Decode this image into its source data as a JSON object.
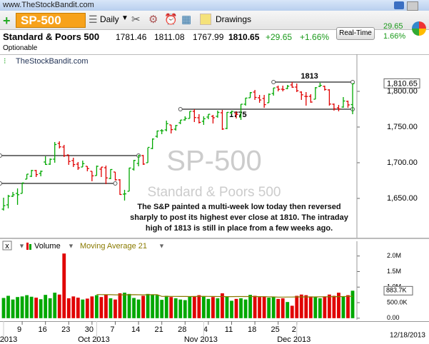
{
  "header": {
    "site": "www.TheStockBandit.com",
    "symbol": "SP-500",
    "period": "Daily",
    "drawings": "Drawings",
    "name": "Standard & Poors 500",
    "open": 1781.46,
    "high": 1811.08,
    "low": 1767.99,
    "close": 1810.65,
    "change": "+29.65",
    "change_pct": "+1.66%",
    "realtime": "Real-Time",
    "change_abs": "29.65",
    "change_pct_abs": "1.66%",
    "optionable": "Optionable",
    "watermark_site": "TheStockBandit.com",
    "date": "12/18/2013"
  },
  "chart_data": {
    "type": "ohlc",
    "title": "SP-500",
    "subtitle": "Standard & Poors 500",
    "up_color": "#00a800",
    "down_color": "#e00000",
    "grid": false,
    "annotation": [
      "The S&P painted a multi-week low today then reversed",
      "sharply to post its highest ever close at 1810. The intraday",
      "high of 1813 is still in place from a few weeks ago."
    ],
    "ylim": [
      1595,
      1850
    ],
    "yticks": [
      {
        "value": 1650,
        "label": "1,650.00"
      },
      {
        "value": 1700,
        "label": "1,700.00"
      },
      {
        "value": 1750,
        "label": "1,750.00"
      },
      {
        "value": 1800,
        "label": "1,800.00"
      }
    ],
    "last_price_label": "1,810.65",
    "open": [
      1635,
      1641,
      1653,
      1657,
      1657,
      1677,
      1681,
      1689,
      1685,
      1701,
      1698,
      1705,
      1727,
      1722,
      1711,
      1703,
      1698,
      1694,
      1695,
      1688,
      1682,
      1691,
      1693,
      1678,
      1687,
      1676,
      1656,
      1660,
      1691,
      1699,
      1710,
      1700,
      1720,
      1737,
      1745,
      1746,
      1753,
      1747,
      1756,
      1760,
      1762,
      1772,
      1763,
      1758,
      1764,
      1765,
      1765,
      1770,
      1748,
      1770,
      1769,
      1764,
      1782,
      1791,
      1799,
      1791,
      1790,
      1784,
      1797,
      1806,
      1803,
      1804,
      1809,
      1806,
      1799,
      1793,
      1793,
      1789,
      1807,
      1807,
      1802,
      1782,
      1777,
      1778,
      1786,
      1781.46
    ],
    "high": [
      1651,
      1655,
      1659,
      1664,
      1672,
      1684,
      1690,
      1690,
      1689,
      1709,
      1706,
      1729,
      1730,
      1725,
      1711,
      1707,
      1701,
      1703,
      1695,
      1688,
      1696,
      1694,
      1696,
      1691,
      1687,
      1677,
      1662,
      1693,
      1704,
      1711,
      1711,
      1721,
      1734,
      1745,
      1747,
      1759,
      1753,
      1753,
      1760,
      1765,
      1772,
      1775,
      1768,
      1765,
      1768,
      1767,
      1773,
      1774,
      1771,
      1773,
      1772,
      1782,
      1791,
      1799,
      1802,
      1795,
      1795,
      1797,
      1805,
      1808,
      1808,
      1809,
      1813,
      1811,
      1800,
      1799,
      1796,
      1806,
      1812,
      1808,
      1803,
      1783,
      1781,
      1792,
      1787,
      1811.08
    ],
    "low": [
      1633,
      1636,
      1652,
      1641,
      1657,
      1677,
      1680,
      1680,
      1681,
      1697,
      1697,
      1700,
      1720,
      1708,
      1697,
      1694,
      1690,
      1694,
      1688,
      1674,
      1682,
      1680,
      1670,
      1677,
      1675,
      1655,
      1647,
      1660,
      1689,
      1695,
      1697,
      1700,
      1719,
      1735,
      1740,
      1744,
      1741,
      1745,
      1754,
      1759,
      1762,
      1757,
      1755,
      1753,
      1761,
      1755,
      1763,
      1746,
      1747,
      1768,
      1762,
      1760,
      1780,
      1791,
      1788,
      1784,
      1777,
      1784,
      1794,
      1800,
      1800,
      1803,
      1805,
      1799,
      1788,
      1780,
      1784,
      1789,
      1806,
      1801,
      1780,
      1773,
      1772,
      1777,
      1777,
      1767.99
    ],
    "close": [
      1639.8,
      1653.1,
      1655.1,
      1655.2,
      1671.7,
      1684,
      1689.1,
      1683.4,
      1688,
      1697.6,
      1704.8,
      1725.5,
      1722.3,
      1709.9,
      1701.8,
      1697.4,
      1692.8,
      1698.7,
      1691.8,
      1681.6,
      1695,
      1693.9,
      1678.7,
      1690.5,
      1676.1,
      1655.5,
      1656.4,
      1692.6,
      1703.2,
      1710.1,
      1698.1,
      1721.5,
      1733.2,
      1744.5,
      1744.7,
      1754.7,
      1746.4,
      1752.1,
      1759.8,
      1762.1,
      1772,
      1763.3,
      1756.5,
      1761.6,
      1767.9,
      1763,
      1770.5,
      1747.2,
      1770.6,
      1771.9,
      1767.7,
      1782,
      1790.6,
      1798.2,
      1791.5,
      1787.9,
      1781.4,
      1795.9,
      1804.8,
      1802.8,
      1802.5,
      1807.2,
      1805.8,
      1800.9,
      1795.2,
      1792.8,
      1785,
      1805.1,
      1808.4,
      1802.6,
      1782.2,
      1775.5,
      1775.3,
      1786.5,
      1781,
      1810.65
    ],
    "levels": [
      {
        "value": 1813,
        "label": "1813",
        "from": 58,
        "to": 75
      },
      {
        "value": 1775,
        "label": "1775",
        "from": 38,
        "to": 75
      },
      {
        "value": 1710,
        "from": 0,
        "to": 29
      },
      {
        "value": 1671,
        "from": 0,
        "to": 24
      }
    ],
    "xticks": [
      {
        "value": 4,
        "label": "9"
      },
      {
        "value": 9,
        "label": "16"
      },
      {
        "value": 14,
        "label": "23"
      },
      {
        "value": 19,
        "label": "30"
      },
      {
        "value": 24,
        "label": "7"
      },
      {
        "value": 29,
        "label": "14"
      },
      {
        "value": 34,
        "label": "21"
      },
      {
        "value": 39,
        "label": "28"
      },
      {
        "value": 44,
        "label": "4"
      },
      {
        "value": 49,
        "label": "11"
      },
      {
        "value": 54,
        "label": "18"
      },
      {
        "value": 59,
        "label": "25"
      },
      {
        "value": 63,
        "label": "2"
      }
    ],
    "month_labels": [
      {
        "value": 0,
        "label": "2013"
      },
      {
        "value": 20,
        "label": "Oct 2013"
      },
      {
        "value": 43,
        "label": "Nov 2013"
      },
      {
        "value": 63,
        "label": "Dec 2013"
      }
    ],
    "volume": {
      "name": "Volume",
      "ma_name": "Moving Average 21",
      "ma_color": "#8a7a00",
      "ylim": [
        -50000,
        2200000
      ],
      "yticks": [
        {
          "value": 0,
          "label": "0.00"
        },
        {
          "value": 500000,
          "label": "500.0K"
        },
        {
          "value": 1000000,
          "label": "1.0M"
        },
        {
          "value": 1500000,
          "label": "1.5M"
        },
        {
          "value": 2000000,
          "label": "2.0M"
        }
      ],
      "last_label": "883.7K",
      "values": [
        650000,
        720000,
        600000,
        680000,
        700000,
        740000,
        690000,
        660000,
        610000,
        750000,
        640000,
        820000,
        760000,
        2080000,
        640000,
        700000,
        660000,
        600000,
        630000,
        700000,
        740000,
        680000,
        760000,
        640000,
        600000,
        800000,
        820000,
        780000,
        650000,
        600000,
        720000,
        780000,
        760000,
        740000,
        590000,
        720000,
        680000,
        640000,
        600000,
        580000,
        690000,
        700000,
        740000,
        700000,
        620000,
        680000,
        640000,
        800000,
        700000,
        560000,
        620000,
        640000,
        600000,
        750000,
        720000,
        680000,
        700000,
        660000,
        680000,
        620000,
        640000,
        520000,
        400000,
        720000,
        760000,
        740000,
        700000,
        680000,
        640000,
        700000,
        760000,
        720000,
        820000,
        700000,
        740000,
        883700
      ],
      "ma": [
        null,
        null,
        null,
        null,
        null,
        null,
        null,
        null,
        null,
        null,
        null,
        null,
        null,
        null,
        null,
        null,
        null,
        null,
        null,
        null,
        760000,
        758000,
        757000,
        755000,
        752000,
        750000,
        752000,
        754000,
        755000,
        754000,
        752000,
        754000,
        756000,
        757000,
        700000,
        702000,
        701000,
        700000,
        699000,
        698000,
        697000,
        698000,
        700000,
        702000,
        701000,
        699000,
        697000,
        696000,
        695000,
        694000,
        696000,
        697000,
        696000,
        697000,
        696000,
        695000,
        692000,
        690000,
        685000,
        678000,
        677000,
        679000,
        681000,
        684000,
        685000,
        684000,
        683000,
        684000,
        686000,
        689000,
        690000,
        693000,
        695000,
        697000,
        700000,
        705000
      ]
    }
  }
}
